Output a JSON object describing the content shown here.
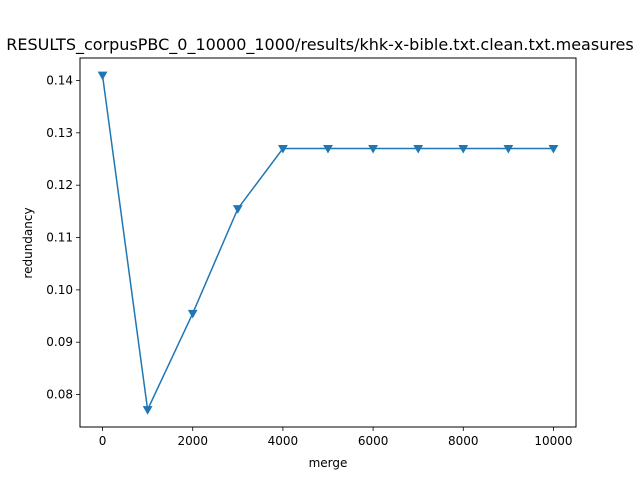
{
  "chart_data": {
    "type": "line",
    "title": "RESULTS_corpusPBC_0_10000_1000/results/khk-x-bible.txt.clean.txt.measures",
    "xlabel": "merge",
    "ylabel": "redundancy",
    "xlim": [
      -500,
      10500
    ],
    "ylim": [
      0.0738,
      0.1443
    ],
    "xticks": [
      0,
      2000,
      4000,
      6000,
      8000,
      10000
    ],
    "yticks": [
      0.08,
      0.09,
      0.1,
      0.11,
      0.12,
      0.13,
      0.14
    ],
    "ytick_labels": [
      "0.08",
      "0.09",
      "0.10",
      "0.11",
      "0.12",
      "0.13",
      "0.14"
    ],
    "grid": false,
    "marker": "triangle-down",
    "color": "#1f77b4",
    "x": [
      0,
      1000,
      2000,
      3000,
      4000,
      5000,
      6000,
      7000,
      8000,
      9000,
      10000
    ],
    "y": [
      0.141,
      0.0771,
      0.0955,
      0.1155,
      0.127,
      0.127,
      0.127,
      0.127,
      0.127,
      0.127,
      0.127
    ]
  }
}
